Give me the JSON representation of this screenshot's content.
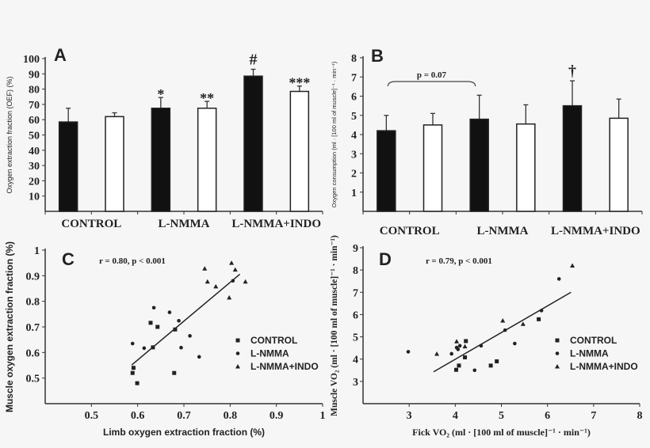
{
  "chart_data": [
    {
      "panel_label": "A",
      "type": "bar",
      "ylabel": "Oxygen extraction fraction (OEF) (%)",
      "categories": [
        "CONTROL",
        "L-NMMA",
        "L-NMMA+INDO"
      ],
      "ylim": [
        0,
        100
      ],
      "yticks": [
        10,
        20,
        30,
        40,
        50,
        60,
        70,
        80,
        90,
        100
      ],
      "series": [
        {
          "color": "#111111",
          "values": [
            58.5,
            67.5,
            88.5
          ],
          "errors": [
            9,
            7,
            4.5
          ]
        },
        {
          "color": "#ffffff",
          "values": [
            62,
            67.5,
            78.5
          ],
          "errors": [
            2.5,
            4.5,
            3.5
          ]
        }
      ],
      "annotations": [
        {
          "category": 1,
          "series": 0,
          "text": "*"
        },
        {
          "category": 1,
          "series": 1,
          "text": "**"
        },
        {
          "category": 2,
          "series": 0,
          "text": "#"
        },
        {
          "category": 2,
          "series": 1,
          "text": "***"
        }
      ]
    },
    {
      "panel_label": "B",
      "type": "bar",
      "ylabel": "Oxygen consumption (ml · [100 ml of muscle]⁻¹ · min⁻¹)",
      "categories": [
        "CONTROL",
        "L-NMMA",
        "L-NMMA+INDO"
      ],
      "ylim": [
        0,
        8
      ],
      "yticks": [
        1,
        2,
        3,
        4,
        5,
        6,
        7,
        8
      ],
      "series": [
        {
          "color": "#111111",
          "values": [
            4.2,
            4.8,
            5.5
          ],
          "errors": [
            0.8,
            1.25,
            1.3
          ]
        },
        {
          "color": "#ffffff",
          "values": [
            4.5,
            4.55,
            4.85
          ],
          "errors": [
            0.6,
            1.0,
            1.0
          ]
        }
      ],
      "annotations": [
        {
          "category": 2,
          "series": 0,
          "text": "†"
        }
      ],
      "bracket": {
        "from_category": 0,
        "to_category": 1,
        "series": 0,
        "text": "p = 0.07"
      }
    },
    {
      "panel_label": "C",
      "type": "scatter",
      "xlabel": "Limb oxygen extraction fraction (%)",
      "ylabel": "Muscle oxygen extraction fraction (%)",
      "xlim": [
        0.4,
        1.0
      ],
      "ylim": [
        0.4,
        1.0
      ],
      "xticks": [
        "0.5",
        "0.6",
        "0.7",
        "0.8",
        "0.9",
        "1"
      ],
      "yticks": [
        "0.5",
        "0.6",
        "0.7",
        "0.8",
        "0.9",
        "1"
      ],
      "annotation": "r = 0.80, p < 0.001",
      "legend_position": "right",
      "series": [
        {
          "name": "CONTROL",
          "marker": "square",
          "x": [
            0.589,
            0.591,
            0.599,
            0.628,
            0.643,
            0.633,
            0.679,
            0.681
          ],
          "y": [
            0.52,
            0.54,
            0.48,
            0.716,
            0.7,
            0.62,
            0.52,
            0.69
          ]
        },
        {
          "name": "L-NMMA",
          "marker": "circle",
          "x": [
            0.589,
            0.614,
            0.635,
            0.669,
            0.689,
            0.694,
            0.713,
            0.733,
            0.806
          ],
          "y": [
            0.635,
            0.617,
            0.775,
            0.757,
            0.724,
            0.619,
            0.665,
            0.583,
            0.88
          ]
        },
        {
          "name": "L-NMMA+INDO",
          "marker": "triangle",
          "x": [
            0.745,
            0.751,
            0.769,
            0.798,
            0.803,
            0.811,
            0.833
          ],
          "y": [
            0.928,
            0.877,
            0.858,
            0.815,
            0.95,
            0.924,
            0.877
          ]
        }
      ],
      "regression": {
        "x": [
          0.587,
          0.821
        ],
        "y": [
          0.551,
          0.906
        ]
      }
    },
    {
      "panel_label": "D",
      "type": "scatter",
      "xlabel": "Fick VO₂ (ml · [100 ml of muscle]⁻¹ · min⁻¹)",
      "ylabel": "Muscle VO₂ (ml · [100 ml of muscle]⁻¹ · min⁻¹)",
      "xlim": [
        2,
        8
      ],
      "ylim": [
        2,
        9
      ],
      "xticks": [
        "3",
        "4",
        "5",
        "6",
        "7",
        "8"
      ],
      "yticks": [
        "3",
        "4",
        "5",
        "6",
        "7",
        "8",
        "9"
      ],
      "annotation": "r = 0.79, p < 0.001",
      "legend_position": "right",
      "series": [
        {
          "name": "CONTROL",
          "marker": "square",
          "x": [
            4.02,
            4.08,
            4.23,
            4.21,
            4.77,
            4.9,
            5.81
          ],
          "y": [
            3.52,
            3.71,
            4.81,
            4.08,
            3.71,
            3.9,
            5.79
          ]
        },
        {
          "name": "L-NMMA",
          "marker": "circle",
          "x": [
            2.98,
            3.92,
            4.03,
            4.06,
            4.1,
            4.42,
            4.56,
            5.08,
            5.29,
            6.25,
            5.87
          ],
          "y": [
            4.33,
            4.24,
            4.52,
            4.44,
            4.6,
            3.5,
            4.6,
            5.3,
            4.7,
            7.6,
            6.18
          ]
        },
        {
          "name": "L-NMMA+INDO",
          "marker": "triangle",
          "x": [
            3.6,
            4.03,
            4.21,
            5.03,
            5.47,
            6.54
          ],
          "y": [
            4.24,
            4.8,
            4.57,
            5.73,
            5.58,
            8.2
          ]
        }
      ],
      "regression": {
        "x": [
          3.53,
          6.51
        ],
        "y": [
          3.43,
          7.0
        ]
      }
    }
  ]
}
